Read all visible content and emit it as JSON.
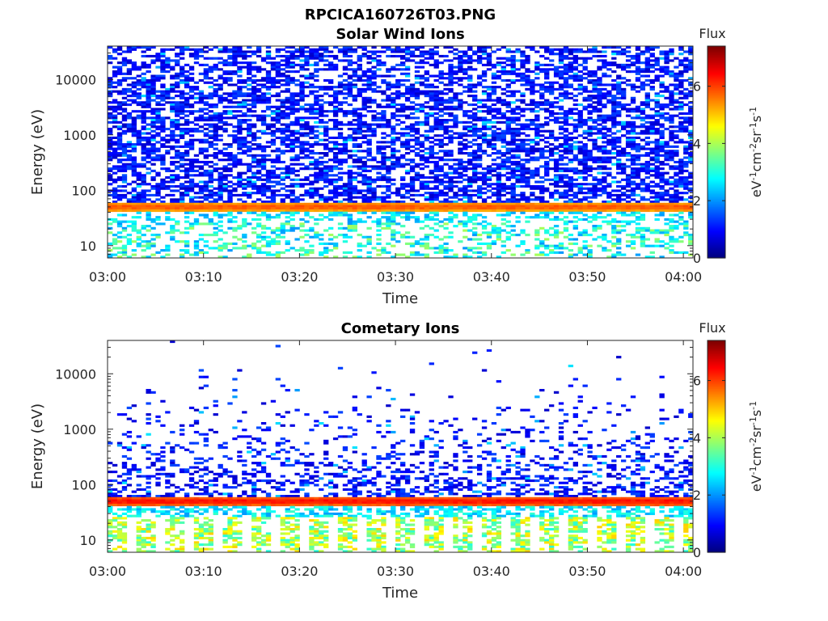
{
  "figure_title": "RPCICA160726T03.PNG",
  "chart_data": [
    {
      "type": "heatmap",
      "title": "Solar Wind Ions",
      "xlabel": "Time",
      "ylabel": "Energy (eV)",
      "x_tick_labels": [
        "03:00",
        "03:10",
        "03:20",
        "03:30",
        "03:40",
        "03:50",
        "04:00"
      ],
      "xlim": [
        "03:00",
        "04:01"
      ],
      "y_scale": "log",
      "ylim": [
        6,
        40000
      ],
      "y_tick_labels": [
        "10",
        "100",
        "1000",
        "10000"
      ],
      "y_tick_values": [
        10,
        100,
        1000,
        10000
      ],
      "colorbar": {
        "title": "Flux",
        "label": "eV-1cm-2sr-1s-1",
        "range": [
          0,
          7.4
        ],
        "tick_labels": [
          "0",
          "2",
          "4",
          "6"
        ],
        "tick_values": [
          0,
          2,
          4,
          6
        ],
        "colormap": "jet"
      },
      "features": {
        "band_energy_eV": [
          40,
          62
        ],
        "band_flux": [
          5,
          6
        ],
        "high_energy_flux": [
          0.5,
          1.5
        ],
        "low_energy_flux": [
          2,
          4
        ]
      },
      "grid": false
    },
    {
      "type": "heatmap",
      "title": "Cometary Ions",
      "xlabel": "Time",
      "ylabel": "Energy (eV)",
      "x_tick_labels": [
        "03:00",
        "03:10",
        "03:20",
        "03:30",
        "03:40",
        "03:50",
        "04:00"
      ],
      "xlim": [
        "03:00",
        "04:01"
      ],
      "y_scale": "log",
      "ylim": [
        6,
        40000
      ],
      "y_tick_labels": [
        "10",
        "100",
        "1000",
        "10000"
      ],
      "y_tick_values": [
        10,
        100,
        1000,
        10000
      ],
      "colorbar": {
        "title": "Flux",
        "label": "eV-1cm-2sr-1s-1",
        "range": [
          0,
          7.4
        ],
        "tick_labels": [
          "0",
          "2",
          "4",
          "6"
        ],
        "tick_values": [
          0,
          2,
          4,
          6
        ],
        "colormap": "jet"
      },
      "features": {
        "band_energy_eV": [
          40,
          62
        ],
        "band_flux": [
          5.5,
          6.5
        ],
        "high_energy_flux": [
          0.5,
          1.5
        ],
        "low_energy_flux": [
          3,
          5
        ]
      },
      "grid": false
    }
  ],
  "colors": {
    "axis": "#262626",
    "background": "#ffffff"
  }
}
